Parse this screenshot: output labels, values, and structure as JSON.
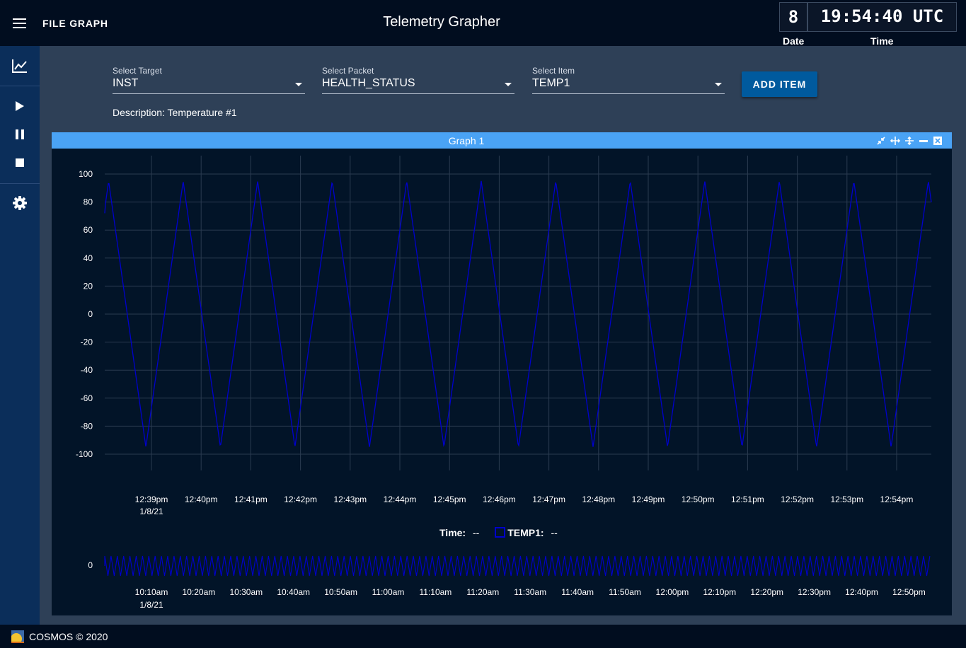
{
  "header": {
    "file_menu": "FILE GRAPH",
    "title": "Telemetry Grapher",
    "date_value": "8",
    "time_value": "19:54:40 UTC",
    "date_label": "Date",
    "time_label": "Time"
  },
  "sidebar": {
    "items": [
      {
        "name": "chart-icon"
      },
      {
        "name": "play-icon"
      },
      {
        "name": "pause-icon"
      },
      {
        "name": "stop-icon"
      },
      {
        "name": "gear-icon"
      }
    ]
  },
  "selectors": {
    "target": {
      "label": "Select Target",
      "value": "INST"
    },
    "packet": {
      "label": "Select Packet",
      "value": "HEALTH_STATUS"
    },
    "item": {
      "label": "Select Item",
      "value": "TEMP1"
    },
    "add_item": "ADD ITEM",
    "description": "Description: Temperature #1"
  },
  "graph": {
    "title": "Graph 1",
    "header_icons": [
      "collapse-icon",
      "expand-width-icon",
      "expand-height-icon",
      "minimize-icon",
      "close-icon"
    ],
    "legend": {
      "time_label": "Time:",
      "time_value": "--",
      "series_label": "TEMP1:",
      "series_value": "--"
    },
    "colors": {
      "series": "#0000cc",
      "header": "#4aa3f5",
      "background": "#021428"
    }
  },
  "chart_data": [
    {
      "type": "line",
      "series": [
        {
          "name": "TEMP1",
          "x_start": "12:38",
          "x_end": "12:55",
          "peak_times": [
            "12:38",
            "12:39",
            "12:41",
            "12:42",
            "12:44",
            "12:45",
            "12:47",
            "12:48",
            "12:50",
            "12:51",
            "12:53",
            "12:54"
          ],
          "min": -95,
          "max": 95,
          "end_value": 60
        }
      ],
      "yticks": [
        "100",
        "80",
        "60",
        "40",
        "20",
        "0",
        "-20",
        "-40",
        "-60",
        "-80",
        "-100"
      ],
      "xticks": [
        "12:39pm",
        "12:40pm",
        "12:41pm",
        "12:42pm",
        "12:43pm",
        "12:44pm",
        "12:45pm",
        "12:46pm",
        "12:47pm",
        "12:48pm",
        "12:49pm",
        "12:50pm",
        "12:51pm",
        "12:52pm",
        "12:53pm",
        "12:54pm"
      ],
      "xdate": "1/8/21",
      "ylim": [
        -100,
        100
      ],
      "grid": true
    },
    {
      "type": "line",
      "series": [
        {
          "name": "TEMP1",
          "description": "overview of full time range, repeating triangle wave"
        }
      ],
      "yticks": [
        "0"
      ],
      "xticks": [
        "10:10am",
        "10:20am",
        "10:30am",
        "10:40am",
        "10:50am",
        "11:00am",
        "11:10am",
        "11:20am",
        "11:30am",
        "11:40am",
        "11:50am",
        "12:00pm",
        "12:10pm",
        "12:20pm",
        "12:30pm",
        "12:40pm",
        "12:50pm"
      ],
      "xdate": "1/8/21"
    }
  ],
  "footer": {
    "text": "COSMOS © 2020"
  }
}
